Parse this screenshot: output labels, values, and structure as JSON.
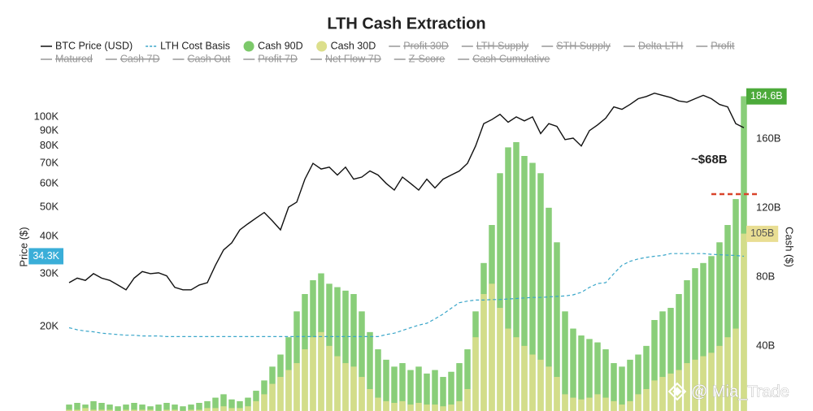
{
  "chart_data": {
    "type": "combo",
    "title": "LTH Cash Extraction",
    "y_label": "Price ($)",
    "y2_label": "Cash ($)",
    "ylog": true,
    "ylim": [
      10450,
      149000
    ],
    "yticks": [
      {
        "value": 20000,
        "label": "20K"
      },
      {
        "value": 30000,
        "label": "30K"
      },
      {
        "value": 40000,
        "label": "40K"
      },
      {
        "value": 50000,
        "label": "50K"
      },
      {
        "value": 60000,
        "label": "60K"
      },
      {
        "value": 70000,
        "label": "70K"
      },
      {
        "value": 80000,
        "label": "80K"
      },
      {
        "value": 90000,
        "label": "90K"
      },
      {
        "value": 100000,
        "label": "100K"
      }
    ],
    "y2lim": [
      2.4,
      202.8
    ],
    "y2ticks": [
      {
        "value": 40,
        "label": "40B"
      },
      {
        "value": 80,
        "label": "80B"
      },
      {
        "value": 120,
        "label": "120B"
      },
      {
        "value": 160,
        "label": "160B"
      }
    ],
    "grid": false,
    "series": [
      {
        "name": "BTC Price (USD)",
        "type": "line",
        "dash": false,
        "color": "#111111",
        "axis": "y",
        "values": [
          28000,
          29000,
          28500,
          30000,
          29000,
          28500,
          27500,
          26500,
          29000,
          30500,
          30000,
          30200,
          29500,
          27000,
          26500,
          26500,
          27500,
          28000,
          32000,
          36000,
          38000,
          42000,
          44000,
          46000,
          48000,
          45000,
          42000,
          50000,
          52000,
          62000,
          70000,
          67000,
          68000,
          64000,
          68000,
          62000,
          63000,
          66000,
          64000,
          60000,
          57000,
          63000,
          60000,
          57000,
          62000,
          58000,
          62000,
          64000,
          66000,
          70000,
          80000,
          95000,
          98000,
          102000,
          96000,
          100000,
          97000,
          100000,
          88000,
          95000,
          93000,
          84000,
          85000,
          80000,
          90000,
          94000,
          99000,
          108000,
          106000,
          110000,
          115000,
          117000,
          120000,
          118000,
          116000,
          113000,
          112000,
          115000,
          118000,
          115000,
          110000,
          108000,
          95000,
          92000
        ]
      },
      {
        "name": "LTH Cost Basis",
        "type": "line",
        "dash": true,
        "color": "#3aa6c9",
        "axis": "y",
        "values": [
          19800,
          19500,
          19300,
          19200,
          19000,
          18900,
          18800,
          18700,
          18700,
          18600,
          18600,
          18600,
          18500,
          18500,
          18500,
          18500,
          18500,
          18500,
          18500,
          18500,
          18500,
          18500,
          18500,
          18500,
          18500,
          18500,
          18500,
          18500,
          18500,
          18500,
          18500,
          18500,
          18500,
          18500,
          18500,
          18500,
          18500,
          18500,
          18500,
          18800,
          19000,
          19400,
          19800,
          20200,
          20500,
          21200,
          22000,
          23000,
          24000,
          24300,
          24500,
          24500,
          24600,
          24600,
          24700,
          24800,
          24900,
          25000,
          25000,
          25100,
          25200,
          25300,
          25500,
          26000,
          27000,
          27800,
          28000,
          30000,
          32000,
          33000,
          33600,
          34000,
          34300,
          34500,
          35000,
          35000,
          35000,
          35000,
          35000,
          34800,
          34700,
          34600,
          34500,
          34300
        ],
        "value_labels": [
          null,
          null,
          null,
          null,
          null,
          null,
          null,
          null,
          null,
          null,
          null,
          null,
          null,
          null,
          null,
          null,
          null,
          null,
          null,
          null,
          null,
          null,
          null,
          null,
          null,
          null,
          null,
          null,
          null,
          null,
          null,
          null,
          null,
          null,
          null,
          null,
          null,
          null,
          null,
          null,
          null,
          null,
          null,
          null,
          null,
          null,
          null,
          null,
          null,
          null,
          null,
          null,
          null,
          null,
          null,
          null,
          null,
          null,
          null,
          null,
          null,
          null,
          null,
          null,
          null,
          null,
          null,
          null,
          null,
          null,
          null,
          null,
          null,
          null,
          null,
          null,
          null,
          null,
          null,
          null,
          null,
          null,
          null,
          "34.3K"
        ]
      },
      {
        "name": "Cash 90D",
        "type": "bar",
        "color": "#7cc96a",
        "axis": "y2",
        "badge_color": "#4caa3a",
        "values": [
          6,
          7,
          6,
          8,
          7,
          6,
          5,
          6,
          7,
          6,
          5,
          6,
          7,
          6,
          5,
          6,
          7,
          8,
          10,
          12,
          9,
          8,
          10,
          14,
          20,
          28,
          35,
          45,
          60,
          70,
          78,
          82,
          76,
          74,
          72,
          70,
          60,
          48,
          38,
          32,
          28,
          30,
          26,
          28,
          24,
          26,
          22,
          25,
          30,
          38,
          60,
          88,
          110,
          140,
          155,
          158,
          150,
          146,
          140,
          120,
          100,
          60,
          50,
          46,
          44,
          42,
          38,
          30,
          28,
          32,
          35,
          40,
          55,
          60,
          62,
          70,
          78,
          85,
          88,
          92,
          100,
          110,
          125,
          184.6
        ],
        "value_labels": [
          null,
          null,
          null,
          null,
          null,
          null,
          null,
          null,
          null,
          null,
          null,
          null,
          null,
          null,
          null,
          null,
          null,
          null,
          null,
          null,
          null,
          null,
          null,
          null,
          null,
          null,
          null,
          null,
          null,
          null,
          null,
          null,
          null,
          null,
          null,
          null,
          null,
          null,
          null,
          null,
          null,
          null,
          null,
          null,
          null,
          null,
          null,
          null,
          null,
          null,
          null,
          null,
          null,
          null,
          null,
          null,
          null,
          null,
          null,
          null,
          null,
          null,
          null,
          null,
          null,
          null,
          null,
          null,
          null,
          null,
          null,
          null,
          null,
          null,
          null,
          null,
          null,
          null,
          null,
          null,
          null,
          null,
          null,
          "184.6B"
        ]
      },
      {
        "name": "Cash 30D",
        "type": "bar",
        "color": "#dcdf8c",
        "axis": "y2",
        "badge_color": "#e9de93",
        "values": [
          3,
          3,
          4,
          3,
          3,
          3,
          2,
          3,
          3,
          3,
          3,
          2,
          3,
          3,
          2,
          3,
          3,
          4,
          4,
          5,
          4,
          4,
          5,
          8,
          12,
          18,
          22,
          26,
          30,
          38,
          45,
          48,
          40,
          34,
          30,
          28,
          22,
          15,
          10,
          8,
          7,
          8,
          6,
          7,
          6,
          6,
          5,
          6,
          8,
          15,
          45,
          70,
          76,
          62,
          50,
          45,
          40,
          35,
          32,
          28,
          22,
          12,
          10,
          9,
          10,
          12,
          10,
          8,
          6,
          8,
          12,
          15,
          20,
          22,
          24,
          26,
          30,
          32,
          34,
          36,
          40,
          45,
          50,
          105
        ],
        "value_labels": [
          null,
          null,
          null,
          null,
          null,
          null,
          null,
          null,
          null,
          null,
          null,
          null,
          null,
          null,
          null,
          null,
          null,
          null,
          null,
          null,
          null,
          null,
          null,
          null,
          null,
          null,
          null,
          null,
          null,
          null,
          null,
          null,
          null,
          null,
          null,
          null,
          null,
          null,
          null,
          null,
          null,
          null,
          null,
          null,
          null,
          null,
          null,
          null,
          null,
          null,
          null,
          null,
          null,
          null,
          null,
          null,
          null,
          null,
          null,
          null,
          null,
          null,
          null,
          null,
          null,
          null,
          null,
          null,
          null,
          null,
          null,
          null,
          null,
          null,
          null,
          null,
          null,
          null,
          null,
          null,
          null,
          null,
          null,
          "105B"
        ]
      }
    ],
    "legend_inactive": [
      "Profit 30D",
      "LTH Supply",
      "STH Supply",
      "Delta LTH",
      "Profit",
      "Matured",
      "Cash 7D",
      "Cash Out",
      "Profit 7D",
      "Net Flow 7D",
      "Z-Score",
      "Cash Cumulative"
    ],
    "annotation": "~$68B",
    "watermark": "@ Mia_Trade"
  }
}
